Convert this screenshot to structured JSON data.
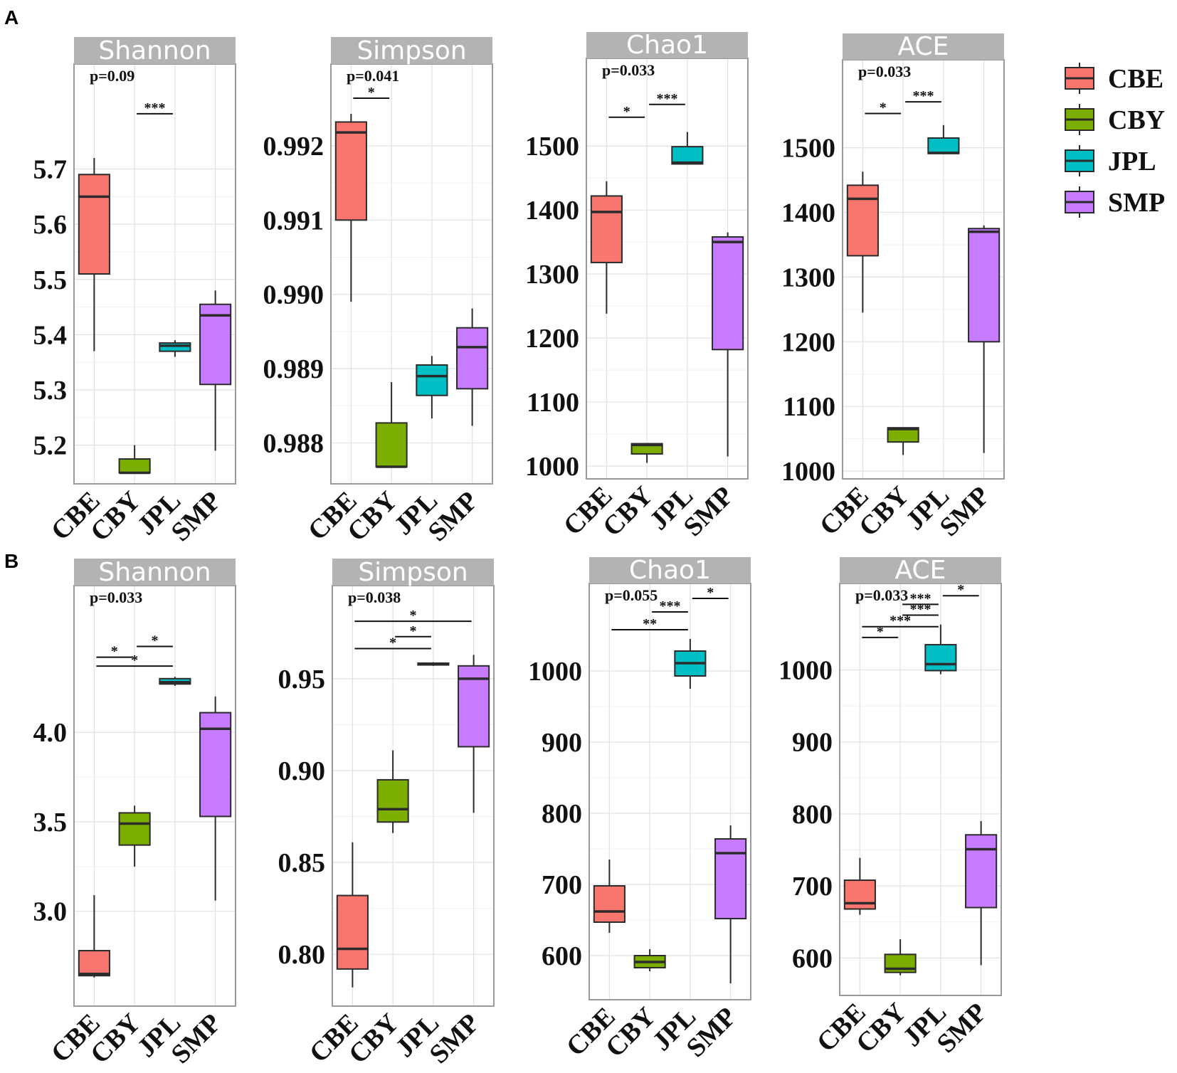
{
  "panel_labels": [
    "A",
    "B"
  ],
  "legend": [
    {
      "name": "CBE",
      "color": "#F8766D"
    },
    {
      "name": "CBY",
      "color": "#7CAE00"
    },
    {
      "name": "JPL",
      "color": "#00BFC4"
    },
    {
      "name": "SMP",
      "color": "#C77CFF"
    }
  ],
  "chart_data": [
    {
      "type": "box",
      "panel": "A",
      "title": "Shannon",
      "pvalue": "p=0.09",
      "categories": [
        "CBE",
        "CBY",
        "JPL",
        "SMP"
      ],
      "ylim": [
        5.13,
        5.89
      ],
      "yticks": [
        5.2,
        5.3,
        5.4,
        5.5,
        5.6,
        5.7
      ],
      "ytick_labels": [
        "5.2",
        "5.3",
        "5.4",
        "5.5",
        "5.6",
        "5.7"
      ],
      "boxes": [
        {
          "min": 5.37,
          "q1": 5.51,
          "median": 5.65,
          "q3": 5.69,
          "max": 5.72
        },
        {
          "min": 5.15,
          "q1": 5.15,
          "median": 5.15,
          "q3": 5.175,
          "max": 5.2
        },
        {
          "min": 5.36,
          "q1": 5.37,
          "median": 5.38,
          "q3": 5.385,
          "max": 5.39
        },
        {
          "min": 5.19,
          "q1": 5.31,
          "median": 5.435,
          "q3": 5.455,
          "max": 5.48
        }
      ],
      "significance": [
        {
          "from": 1,
          "to": 2,
          "label": "***",
          "y": 5.8
        }
      ]
    },
    {
      "type": "box",
      "panel": "A",
      "title": "Simpson",
      "pvalue": "p=0.041",
      "categories": [
        "CBE",
        "CBY",
        "JPL",
        "SMP"
      ],
      "ylim": [
        0.98745,
        0.9931
      ],
      "yticks": [
        0.988,
        0.989,
        0.99,
        0.991,
        0.992
      ],
      "ytick_labels": [
        "0.988",
        "0.989",
        "0.990",
        "0.991",
        "0.992"
      ],
      "boxes": [
        {
          "min": 0.9899,
          "q1": 0.991,
          "median": 0.99218,
          "q3": 0.99232,
          "max": 0.99243
        },
        {
          "min": 0.98768,
          "q1": 0.98768,
          "median": 0.98768,
          "q3": 0.98827,
          "max": 0.98882
        },
        {
          "min": 0.98833,
          "q1": 0.98864,
          "median": 0.9889,
          "q3": 0.98905,
          "max": 0.98917
        },
        {
          "min": 0.98823,
          "q1": 0.98873,
          "median": 0.98929,
          "q3": 0.98955,
          "max": 0.98981
        }
      ],
      "significance": [
        {
          "from": 0,
          "to": 1,
          "label": "*",
          "y": 0.99264
        }
      ]
    },
    {
      "type": "box",
      "panel": "A",
      "title": "Chao1",
      "pvalue": "p=0.033",
      "categories": [
        "CBE",
        "CBY",
        "JPL",
        "SMP"
      ],
      "ylim": [
        980,
        1637
      ],
      "yticks": [
        1000,
        1100,
        1200,
        1300,
        1400,
        1500
      ],
      "ytick_labels": [
        "1000",
        "1100",
        "1200",
        "1300",
        "1400",
        "1500"
      ],
      "boxes": [
        {
          "min": 1238,
          "q1": 1318,
          "median": 1397,
          "q3": 1422,
          "max": 1445
        },
        {
          "min": 1005,
          "q1": 1019,
          "median": 1033,
          "q3": 1035,
          "max": 1035
        },
        {
          "min": 1472,
          "q1": 1472,
          "median": 1474,
          "q3": 1499,
          "max": 1522
        },
        {
          "min": 1015,
          "q1": 1182,
          "median": 1350,
          "q3": 1358,
          "max": 1365
        }
      ],
      "significance": [
        {
          "from": 0,
          "to": 1,
          "label": "*",
          "y": 1545
        },
        {
          "from": 1,
          "to": 2,
          "label": "***",
          "y": 1565
        }
      ]
    },
    {
      "type": "box",
      "panel": "A",
      "title": "ACE",
      "pvalue": "p=0.033",
      "categories": [
        "CBE",
        "CBY",
        "JPL",
        "SMP"
      ],
      "ylim": [
        988,
        1636
      ],
      "yticks": [
        1000,
        1100,
        1200,
        1300,
        1400,
        1500
      ],
      "ytick_labels": [
        "1000",
        "1100",
        "1200",
        "1300",
        "1400",
        "1500"
      ],
      "boxes": [
        {
          "min": 1245,
          "q1": 1333,
          "median": 1421,
          "q3": 1442,
          "max": 1463
        },
        {
          "min": 1025,
          "q1": 1045,
          "median": 1065,
          "q3": 1067,
          "max": 1067
        },
        {
          "min": 1490,
          "q1": 1491,
          "median": 1492,
          "q3": 1515,
          "max": 1535
        },
        {
          "min": 1028,
          "q1": 1200,
          "median": 1370,
          "q3": 1375,
          "max": 1380
        }
      ],
      "significance": [
        {
          "from": 0,
          "to": 1,
          "label": "*",
          "y": 1553
        },
        {
          "from": 1,
          "to": 2,
          "label": "***",
          "y": 1571
        }
      ]
    },
    {
      "type": "box",
      "panel": "B",
      "title": "Shannon",
      "pvalue": "p=0.033",
      "categories": [
        "CBE",
        "CBY",
        "JPL",
        "SMP"
      ],
      "ylim": [
        2.47,
        4.82
      ],
      "yticks": [
        3.0,
        3.5,
        4.0
      ],
      "ytick_labels": [
        "3.0",
        "3.5",
        "4.0"
      ],
      "boxes": [
        {
          "min": 2.63,
          "q1": 2.64,
          "median": 2.65,
          "q3": 2.78,
          "max": 3.09
        },
        {
          "min": 3.25,
          "q1": 3.37,
          "median": 3.49,
          "q3": 3.55,
          "max": 3.59
        },
        {
          "min": 4.26,
          "q1": 4.27,
          "median": 4.28,
          "q3": 4.3,
          "max": 4.31
        },
        {
          "min": 3.06,
          "q1": 3.53,
          "median": 4.02,
          "q3": 4.11,
          "max": 4.2
        }
      ],
      "significance": [
        {
          "from": 0,
          "to": 1,
          "label": "*",
          "y": 4.42
        },
        {
          "from": 1,
          "to": 2,
          "label": "*",
          "y": 4.48
        },
        {
          "from": 0,
          "to": 2,
          "label": "*",
          "y": 4.37
        }
      ]
    },
    {
      "type": "box",
      "panel": "B",
      "title": "Simpson",
      "pvalue": "p=0.038",
      "categories": [
        "CBE",
        "CBY",
        "JPL",
        "SMP"
      ],
      "ylim": [
        0.7718,
        1.0007
      ],
      "yticks": [
        0.8,
        0.85,
        0.9,
        0.95
      ],
      "ytick_labels": [
        "0.80",
        "0.85",
        "0.90",
        "0.95"
      ],
      "boxes": [
        {
          "min": 0.782,
          "q1": 0.792,
          "median": 0.803,
          "q3": 0.832,
          "max": 0.861
        },
        {
          "min": 0.866,
          "q1": 0.872,
          "median": 0.879,
          "q3": 0.895,
          "max": 0.911
        },
        {
          "min": 0.957,
          "q1": 0.9575,
          "median": 0.958,
          "q3": 0.9585,
          "max": 0.959
        },
        {
          "min": 0.877,
          "q1": 0.913,
          "median": 0.95,
          "q3": 0.957,
          "max": 0.963
        }
      ],
      "significance": [
        {
          "from": 0,
          "to": 3,
          "label": "*",
          "y": 0.9813
        },
        {
          "from": 1,
          "to": 2,
          "label": "*",
          "y": 0.9729
        },
        {
          "from": 0,
          "to": 2,
          "label": "*",
          "y": 0.9664
        }
      ]
    },
    {
      "type": "box",
      "panel": "B",
      "title": "Chao1",
      "pvalue": "p=0.055",
      "categories": [
        "CBE",
        "CBY",
        "JPL",
        "SMP"
      ],
      "ylim": [
        538,
        1123
      ],
      "yticks": [
        600,
        700,
        800,
        900,
        1000
      ],
      "ytick_labels": [
        "600",
        "700",
        "800",
        "900",
        "1000"
      ],
      "boxes": [
        {
          "min": 632,
          "q1": 647,
          "median": 662,
          "q3": 698,
          "max": 735
        },
        {
          "min": 578,
          "q1": 583,
          "median": 591,
          "q3": 600,
          "max": 609
        },
        {
          "min": 975,
          "q1": 993,
          "median": 1011,
          "q3": 1028,
          "max": 1045
        },
        {
          "min": 561,
          "q1": 652,
          "median": 744,
          "q3": 764,
          "max": 783
        }
      ],
      "significance": [
        {
          "from": 2,
          "to": 3,
          "label": "*",
          "y": 1102
        },
        {
          "from": 1,
          "to": 2,
          "label": "***",
          "y": 1083
        },
        {
          "from": 0,
          "to": 2,
          "label": "**",
          "y": 1058
        }
      ]
    },
    {
      "type": "box",
      "panel": "B",
      "title": "ACE",
      "pvalue": "p=0.033",
      "categories": [
        "CBE",
        "CBY",
        "JPL",
        "SMP"
      ],
      "ylim": [
        548,
        1120
      ],
      "yticks": [
        600,
        700,
        800,
        900,
        1000
      ],
      "ytick_labels": [
        "600",
        "700",
        "800",
        "900",
        "1000"
      ],
      "boxes": [
        {
          "min": 660,
          "q1": 668,
          "median": 676,
          "q3": 708,
          "max": 739
        },
        {
          "min": 576,
          "q1": 580,
          "median": 585,
          "q3": 605,
          "max": 626
        },
        {
          "min": 994,
          "q1": 999,
          "median": 1008,
          "q3": 1035,
          "max": 1063
        },
        {
          "min": 590,
          "q1": 670,
          "median": 751,
          "q3": 771,
          "max": 790
        }
      ],
      "significance": [
        {
          "from": 2,
          "to": 3,
          "label": "*",
          "y": 1103
        },
        {
          "from": 1,
          "to": 2,
          "label": "***",
          "y": 1091
        },
        {
          "from": 1,
          "to": 2,
          "label": "***",
          "y": 1076
        },
        {
          "from": 0,
          "to": 2,
          "label": "***",
          "y": 1060
        },
        {
          "from": 0,
          "to": 1,
          "label": "*",
          "y": 1045
        }
      ]
    }
  ]
}
